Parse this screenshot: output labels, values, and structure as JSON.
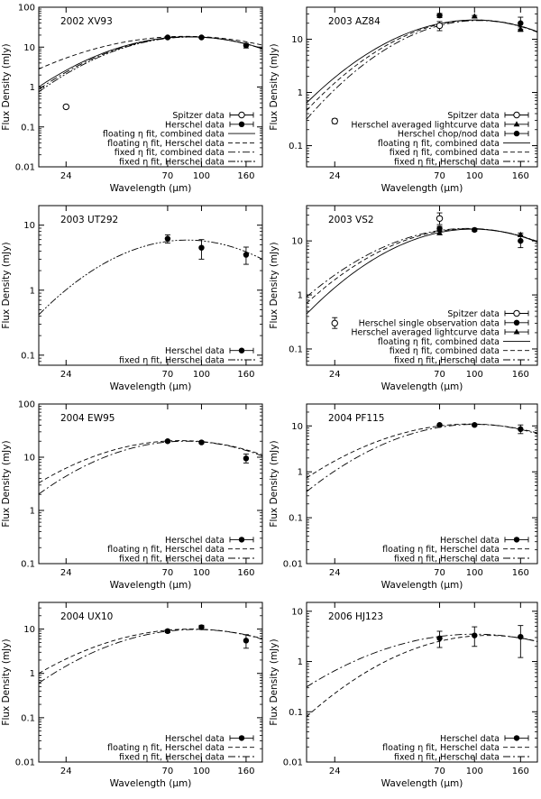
{
  "figure": {
    "xlabel": "Wavelength (μm)",
    "ylabel": "Flux Density (mJy)"
  },
  "chart_data": [
    {
      "type": "line",
      "title": "2002 XV93",
      "xlabel": "Wavelength (μm)",
      "ylabel": "Flux Density (mJy)",
      "xlim": [
        18,
        190
      ],
      "ylim": [
        0.01,
        100
      ],
      "yscale": "log",
      "xscale": "log",
      "xticks": [
        24,
        70,
        100,
        160
      ],
      "yticks": [
        0.01,
        0.1,
        1,
        10,
        100
      ],
      "yticklabels": [
        "0.01",
        "0.1",
        "1",
        "10",
        "100"
      ],
      "legend": [
        {
          "label": "Spitzer data",
          "style": "open-circle"
        },
        {
          "label": "Herschel data",
          "style": "filled-circle"
        },
        {
          "label": "floating η fit, combined data",
          "style": "solid"
        },
        {
          "label": "floating η fit, Herschel data",
          "style": "dashed"
        },
        {
          "label": "fixed η fit, combined data",
          "style": "dashdot"
        },
        {
          "label": "fixed η fit, Herschel data",
          "style": "dashdotdot"
        }
      ],
      "points": [
        {
          "x": 24,
          "y": 0.32,
          "yerr": [
            0.29,
            0.35
          ],
          "marker": "open-circle"
        },
        {
          "x": 70,
          "y": 17.5,
          "yerr": [
            16.5,
            18.5
          ],
          "marker": "filled-circle"
        },
        {
          "x": 100,
          "y": 17.5,
          "yerr": [
            16.5,
            18.5
          ],
          "marker": "filled-circle"
        },
        {
          "x": 160,
          "y": 11,
          "yerr": [
            9.5,
            12.5
          ],
          "marker": "filled-circle"
        }
      ],
      "series": [
        {
          "name": "floating η fit, combined data",
          "style": "solid",
          "peak_x": 88,
          "peak_y": 18.2,
          "sigma": 0.66
        },
        {
          "name": "floating η fit, Herschel data",
          "style": "dashed",
          "peak_x": 85,
          "peak_y": 18.6,
          "sigma": 0.8
        },
        {
          "name": "fixed η fit, combined data",
          "style": "dashdot",
          "peak_x": 89,
          "peak_y": 18.0,
          "sigma": 0.65
        },
        {
          "name": "fixed η fit, Herschel data",
          "style": "dashdotdot",
          "peak_x": 90,
          "peak_y": 17.9,
          "sigma": 0.64
        }
      ]
    },
    {
      "type": "line",
      "title": "2003 AZ84",
      "xlabel": "Wavelength (μm)",
      "ylabel": "Flux Density (mJy)",
      "xlim": [
        18,
        190
      ],
      "ylim": [
        0.04,
        40
      ],
      "yscale": "log",
      "xscale": "log",
      "xticks": [
        24,
        70,
        100,
        160
      ],
      "yticks": [
        0.1,
        1,
        10
      ],
      "yticklabels": [
        "0.1",
        "1",
        "10"
      ],
      "legend": [
        {
          "label": "Spitzer data",
          "style": "open-circle"
        },
        {
          "label": "Herschel averaged lightcurve data",
          "style": "filled-triangle"
        },
        {
          "label": "Herschel chop/nod data",
          "style": "filled-circle"
        },
        {
          "label": "floating η fit, combined data",
          "style": "solid"
        },
        {
          "label": "fixed η fit, combined data",
          "style": "dashed"
        },
        {
          "label": "fixed η fit, Herschel data",
          "style": "dashdot"
        }
      ],
      "points": [
        {
          "x": 24,
          "y": 0.29,
          "yerr": [
            0.26,
            0.32
          ],
          "marker": "open-circle"
        },
        {
          "x": 70,
          "y": 18,
          "yerr": [
            14.5,
            21.5
          ],
          "marker": "open-circle"
        },
        {
          "x": 70,
          "y": 28,
          "yerr": [
            25.5,
            30.5
          ],
          "marker": "filled-circle"
        },
        {
          "x": 100,
          "y": 27,
          "yerr": [
            26,
            28
          ],
          "marker": "filled-triangle"
        },
        {
          "x": 160,
          "y": 20,
          "yerr": [
            15.5,
            26
          ],
          "marker": "filled-circle"
        },
        {
          "x": 160,
          "y": 15.5,
          "yerr": [
            14,
            17
          ],
          "marker": "filled-triangle"
        }
      ],
      "series": [
        {
          "name": "floating η fit, combined data",
          "style": "solid",
          "peak_x": 100,
          "peak_y": 23,
          "sigma": 0.64
        },
        {
          "name": "fixed η fit, combined data",
          "style": "dashed",
          "peak_x": 102,
          "peak_y": 23,
          "sigma": 0.62
        },
        {
          "name": "fixed η fit, Herschel data",
          "style": "dashdot",
          "peak_x": 104,
          "peak_y": 22.5,
          "sigma": 0.6
        }
      ]
    },
    {
      "type": "line",
      "title": "2003 UT292",
      "xlabel": "Wavelength (μm)",
      "ylabel": "Flux Density (mJy)",
      "xlim": [
        18,
        190
      ],
      "ylim": [
        0.07,
        20
      ],
      "yscale": "log",
      "xscale": "log",
      "xticks": [
        24,
        70,
        100,
        160
      ],
      "yticks": [
        0.1,
        1,
        10
      ],
      "yticklabels": [
        "0.1",
        "1",
        "10"
      ],
      "legend": [
        {
          "label": "Herschel data",
          "style": "filled-circle"
        },
        {
          "label": "fixed η fit, Herschel data",
          "style": "dashdotdot"
        }
      ],
      "points": [
        {
          "x": 70,
          "y": 6.2,
          "yerr": [
            5.3,
            7.1
          ],
          "marker": "filled-circle"
        },
        {
          "x": 100,
          "y": 4.5,
          "yerr": [
            3.0,
            6.0
          ],
          "marker": "filled-circle"
        },
        {
          "x": 160,
          "y": 3.5,
          "yerr": [
            2.5,
            4.6
          ],
          "marker": "filled-circle"
        }
      ],
      "series": [
        {
          "name": "fixed η fit, Herschel data",
          "style": "dashdotdot",
          "peak_x": 86,
          "peak_y": 5.9,
          "sigma": 0.68
        }
      ]
    },
    {
      "type": "line",
      "title": "2003 VS2",
      "xlabel": "Wavelength (μm)",
      "ylabel": "Flux Density (mJy)",
      "xlim": [
        18,
        190
      ],
      "ylim": [
        0.05,
        45
      ],
      "yscale": "log",
      "xscale": "log",
      "xticks": [
        24,
        70,
        100,
        160
      ],
      "yticks": [
        0.1,
        1,
        10
      ],
      "yticklabels": [
        "0.1",
        "1",
        "10"
      ],
      "legend": [
        {
          "label": "Spitzer data",
          "style": "open-circle"
        },
        {
          "label": "Herschel single observation data",
          "style": "filled-circle"
        },
        {
          "label": "Herschel averaged lightcurve data",
          "style": "filled-triangle"
        },
        {
          "label": "floating η fit, combined data",
          "style": "solid"
        },
        {
          "label": "fixed η fit, combined data",
          "style": "dashed"
        },
        {
          "label": "fixed η fit, Herschel data",
          "style": "dashdot"
        }
      ],
      "points": [
        {
          "x": 24,
          "y": 0.3,
          "yerr": [
            0.24,
            0.38
          ],
          "marker": "open-circle"
        },
        {
          "x": 70,
          "y": 26,
          "yerr": [
            20,
            33
          ],
          "marker": "open-circle"
        },
        {
          "x": 70,
          "y": 17,
          "yerr": [
            15.5,
            18.5
          ],
          "marker": "filled-circle"
        },
        {
          "x": 70,
          "y": 14,
          "yerr": [
            13,
            15
          ],
          "marker": "filled-triangle"
        },
        {
          "x": 100,
          "y": 16,
          "yerr": [
            15,
            17
          ],
          "marker": "filled-circle"
        },
        {
          "x": 160,
          "y": 10,
          "yerr": [
            7.5,
            13
          ],
          "marker": "filled-circle"
        },
        {
          "x": 160,
          "y": 13,
          "yerr": [
            12,
            14
          ],
          "marker": "filled-triangle"
        }
      ],
      "series": [
        {
          "name": "floating η fit, combined data",
          "style": "solid",
          "peak_x": 98,
          "peak_y": 16.5,
          "sigma": 0.63
        },
        {
          "name": "fixed η fit, combined data",
          "style": "dashed",
          "peak_x": 95,
          "peak_y": 16.8,
          "sigma": 0.66
        },
        {
          "name": "fixed η fit, Herschel data",
          "style": "dashdot",
          "peak_x": 93,
          "peak_y": 17.0,
          "sigma": 0.68
        }
      ]
    },
    {
      "type": "line",
      "title": "2004 EW95",
      "xlabel": "Wavelength (μm)",
      "ylabel": "Flux Density (mJy)",
      "xlim": [
        18,
        190
      ],
      "ylim": [
        0.1,
        100
      ],
      "yscale": "log",
      "xscale": "log",
      "xticks": [
        24,
        70,
        100,
        160
      ],
      "yticks": [
        0.1,
        1,
        10,
        100
      ],
      "yticklabels": [
        "0.1",
        "1",
        "10",
        "100"
      ],
      "legend": [
        {
          "label": "Herschel data",
          "style": "filled-circle"
        },
        {
          "label": "floating η fit, Herschel data",
          "style": "dashed"
        },
        {
          "label": "fixed η fit, Herschel data",
          "style": "dashdot"
        }
      ],
      "points": [
        {
          "x": 70,
          "y": 20,
          "yerr": [
            19,
            21
          ],
          "marker": "filled-circle"
        },
        {
          "x": 100,
          "y": 19,
          "yerr": [
            18,
            20
          ],
          "marker": "filled-circle"
        },
        {
          "x": 160,
          "y": 9.5,
          "yerr": [
            7.8,
            11.5
          ],
          "marker": "filled-circle"
        }
      ],
      "series": [
        {
          "name": "floating η fit, Herschel data",
          "style": "dashed",
          "peak_x": 80,
          "peak_y": 20.5,
          "sigma": 0.78
        },
        {
          "name": "fixed η fit, Herschel data",
          "style": "dashdot",
          "peak_x": 84,
          "peak_y": 20.0,
          "sigma": 0.72
        }
      ]
    },
    {
      "type": "line",
      "title": "2004 PF115",
      "xlabel": "Wavelength (μm)",
      "ylabel": "Flux Density (mJy)",
      "xlim": [
        18,
        190
      ],
      "ylim": [
        0.01,
        30
      ],
      "yscale": "log",
      "xscale": "log",
      "xticks": [
        24,
        70,
        100,
        160
      ],
      "yticks": [
        0.01,
        0.1,
        1,
        10
      ],
      "yticklabels": [
        "0.01",
        "0.1",
        "1",
        "10"
      ],
      "legend": [
        {
          "label": "Herschel data",
          "style": "filled-circle"
        },
        {
          "label": "floating η fit, Herschel data",
          "style": "dashed"
        },
        {
          "label": "fixed η fit, Herschel data",
          "style": "dashdot"
        }
      ],
      "points": [
        {
          "x": 70,
          "y": 10.5,
          "yerr": [
            10,
            11
          ],
          "marker": "filled-circle"
        },
        {
          "x": 100,
          "y": 10.5,
          "yerr": [
            10,
            11
          ],
          "marker": "filled-circle"
        },
        {
          "x": 160,
          "y": 8.5,
          "yerr": [
            6.8,
            10.5
          ],
          "marker": "filled-circle"
        }
      ],
      "series": [
        {
          "name": "floating η fit, Herschel data",
          "style": "dashed",
          "peak_x": 96,
          "peak_y": 11.0,
          "sigma": 0.72
        },
        {
          "name": "fixed η fit, Herschel data",
          "style": "dashdot",
          "peak_x": 100,
          "peak_y": 10.8,
          "sigma": 0.66
        }
      ]
    },
    {
      "type": "line",
      "title": "2004 UX10",
      "xlabel": "Wavelength (μm)",
      "ylabel": "Flux Density (mJy)",
      "xlim": [
        18,
        190
      ],
      "ylim": [
        0.01,
        40
      ],
      "yscale": "log",
      "xscale": "log",
      "xticks": [
        24,
        70,
        100,
        160
      ],
      "yticks": [
        0.01,
        0.1,
        1,
        10
      ],
      "yticklabels": [
        "0.01",
        "0.1",
        "1",
        "10"
      ],
      "legend": [
        {
          "label": "Herschel data",
          "style": "filled-circle"
        },
        {
          "label": "floating η fit, Herschel data",
          "style": "dashed"
        },
        {
          "label": "fixed η fit, Herschel data",
          "style": "dashdot"
        }
      ],
      "points": [
        {
          "x": 70,
          "y": 9,
          "yerr": [
            8.3,
            9.7
          ],
          "marker": "filled-circle"
        },
        {
          "x": 100,
          "y": 11,
          "yerr": [
            9.8,
            12.2
          ],
          "marker": "filled-circle"
        },
        {
          "x": 160,
          "y": 5.5,
          "yerr": [
            3.7,
            7.5
          ],
          "marker": "filled-circle"
        }
      ],
      "series": [
        {
          "name": "floating η fit, Herschel data",
          "style": "dashed",
          "peak_x": 90,
          "peak_y": 10.0,
          "sigma": 0.75
        },
        {
          "name": "fixed η fit, Herschel data",
          "style": "dashdot",
          "peak_x": 94,
          "peak_y": 9.8,
          "sigma": 0.7
        }
      ]
    },
    {
      "type": "line",
      "title": "2006 HJ123",
      "xlabel": "Wavelength (μm)",
      "ylabel": "Flux Density (mJy)",
      "xlim": [
        18,
        190
      ],
      "ylim": [
        0.01,
        15
      ],
      "yscale": "log",
      "xscale": "log",
      "xticks": [
        24,
        70,
        100,
        160
      ],
      "yticks": [
        0.01,
        0.1,
        1,
        10
      ],
      "yticklabels": [
        "0.01",
        "0.1",
        "1",
        "10"
      ],
      "legend": [
        {
          "label": "Herschel data",
          "style": "filled-circle"
        },
        {
          "label": "floating η fit, Herschel data",
          "style": "dashed"
        },
        {
          "label": "fixed η fit, Herschel data",
          "style": "dashdot"
        }
      ],
      "points": [
        {
          "x": 70,
          "y": 2.9,
          "yerr": [
            1.9,
            4.0
          ],
          "marker": "filled-circle"
        },
        {
          "x": 100,
          "y": 3.3,
          "yerr": [
            2.0,
            4.9
          ],
          "marker": "filled-circle"
        },
        {
          "x": 160,
          "y": 3.1,
          "yerr": [
            1.2,
            5.2
          ],
          "marker": "filled-circle"
        }
      ],
      "series": [
        {
          "name": "floating η fit, Herschel data",
          "style": "dashed",
          "peak_x": 115,
          "peak_y": 3.3,
          "sigma": 0.68
        },
        {
          "name": "fixed η fit, Herschel data",
          "style": "dashdot",
          "peak_x": 100,
          "peak_y": 3.5,
          "sigma": 0.78
        }
      ]
    }
  ]
}
